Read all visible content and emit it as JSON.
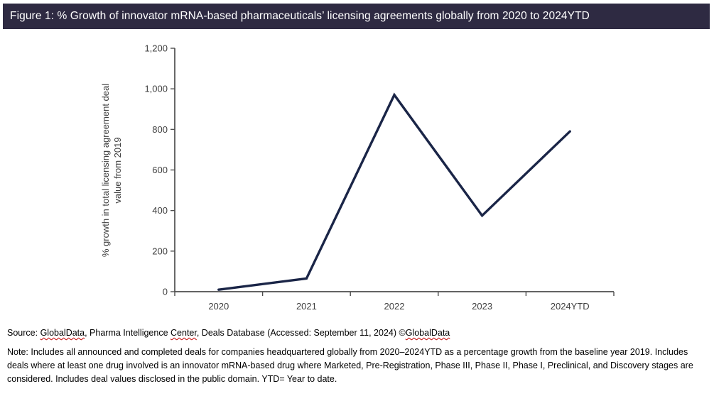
{
  "header": {
    "title": "Figure 1: % Growth of innovator mRNA-based pharmaceuticals’ licensing agreements globally from 2020 to 2024YTD"
  },
  "chart_data": {
    "type": "line",
    "title": "Figure 1: % Growth of innovator mRNA-based pharmaceuticals’ licensing agreements globally from 2020 to 2024YTD",
    "categories": [
      "2020",
      "2021",
      "2022",
      "2023",
      "2024YTD"
    ],
    "series": [
      {
        "name": "% growth in total licensing agreement deal value from 2019",
        "values": [
          10,
          65,
          970,
          375,
          790
        ]
      }
    ],
    "xlabel": "",
    "ylabel_lines": [
      "% growth in total licensing agreement deal",
      "value from 2019"
    ],
    "ylim": [
      0,
      1200
    ],
    "ytick_step": 200,
    "ytick_labels": [
      "0",
      "200",
      "400",
      "600",
      "800",
      "1,000",
      "1,200"
    ],
    "grid": false,
    "legend": "none",
    "markers": "none"
  },
  "source": {
    "parts": [
      {
        "text": "Source: ",
        "misspelled": false
      },
      {
        "text": "GlobalData",
        "misspelled": true
      },
      {
        "text": ", Pharma Intelligence ",
        "misspelled": false
      },
      {
        "text": "Center",
        "misspelled": true
      },
      {
        "text": ", Deals Database (Accessed: September 11, 2024) ©",
        "misspelled": false
      },
      {
        "text": "GlobalData",
        "misspelled": true
      }
    ]
  },
  "note": {
    "text": "Note: Includes all announced and completed deals for companies headquartered globally from 2020–2024YTD as a percentage growth from the baseline year 2019. Includes deals where at least one drug involved is an innovator mRNA-based drug where Marketed, Pre-Registration, Phase III, Phase II, Phase I, Preclinical, and Discovery stages are considered. Includes deal values disclosed in the public domain. YTD= Year to date."
  },
  "colors": {
    "title_bar_bg": "#2e2a42",
    "title_text": "#ffffff",
    "line": "#1a2547",
    "axis": "#4d4d4d",
    "tick_text": "#3f3f3f",
    "squiggle": "#c00000"
  }
}
